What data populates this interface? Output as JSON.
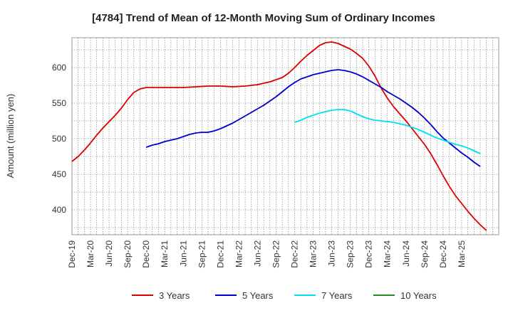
{
  "chart_data": {
    "type": "line",
    "title": "[4784]  Trend of Mean of 12-Month Moving Sum of Ordinary Incomes",
    "xlabel": "",
    "ylabel": "Amount (million yen)",
    "ylim": [
      365,
      642
    ],
    "yticks": [
      400,
      450,
      500,
      550,
      600
    ],
    "x_ticks": [
      "Dec-19",
      "Mar-20",
      "Jun-20",
      "Sep-20",
      "Dec-20",
      "Mar-21",
      "Jun-21",
      "Sep-21",
      "Dec-21",
      "Mar-22",
      "Jun-22",
      "Sep-22",
      "Dec-22",
      "Mar-23",
      "Jun-23",
      "Sep-23",
      "Dec-23",
      "Mar-24",
      "Jun-24",
      "Sep-24",
      "Dec-24",
      "Mar-25"
    ],
    "x_unit": "months from Dec-19",
    "grid": true,
    "legend_position": "bottom",
    "series": [
      {
        "name": "3 Years",
        "color": "#dd0000",
        "points": [
          [
            0,
            468
          ],
          [
            1,
            475
          ],
          [
            2,
            484
          ],
          [
            3,
            494
          ],
          [
            4,
            505
          ],
          [
            5,
            515
          ],
          [
            6,
            524
          ],
          [
            7,
            533
          ],
          [
            8,
            543
          ],
          [
            9,
            555
          ],
          [
            10,
            565
          ],
          [
            11,
            570
          ],
          [
            12,
            572
          ],
          [
            14,
            572
          ],
          [
            16,
            572
          ],
          [
            18,
            572
          ],
          [
            20,
            573
          ],
          [
            22,
            574
          ],
          [
            24,
            574
          ],
          [
            26,
            573
          ],
          [
            28,
            574
          ],
          [
            30,
            576
          ],
          [
            32,
            580
          ],
          [
            34,
            586
          ],
          [
            35,
            592
          ],
          [
            36,
            600
          ],
          [
            37,
            609
          ],
          [
            38,
            617
          ],
          [
            39,
            624
          ],
          [
            40,
            631
          ],
          [
            41,
            635
          ],
          [
            42,
            636
          ],
          [
            43,
            634
          ],
          [
            44,
            630
          ],
          [
            45,
            626
          ],
          [
            46,
            620
          ],
          [
            47,
            613
          ],
          [
            48,
            602
          ],
          [
            49,
            588
          ],
          [
            50,
            571
          ],
          [
            51,
            557
          ],
          [
            52,
            545
          ],
          [
            53,
            535
          ],
          [
            54,
            525
          ],
          [
            55,
            514
          ],
          [
            56,
            503
          ],
          [
            57,
            492
          ],
          [
            58,
            479
          ],
          [
            59,
            464
          ],
          [
            60,
            448
          ],
          [
            61,
            433
          ],
          [
            62,
            420
          ],
          [
            63,
            409
          ],
          [
            64,
            398
          ],
          [
            65,
            388
          ],
          [
            66,
            379
          ],
          [
            67,
            371
          ]
        ]
      },
      {
        "name": "5 Years",
        "color": "#0000cc",
        "points": [
          [
            12,
            488
          ],
          [
            13,
            491
          ],
          [
            14,
            493
          ],
          [
            15,
            496
          ],
          [
            16,
            498
          ],
          [
            17,
            500
          ],
          [
            18,
            503
          ],
          [
            19,
            506
          ],
          [
            20,
            508
          ],
          [
            21,
            509
          ],
          [
            22,
            509
          ],
          [
            23,
            511
          ],
          [
            24,
            514
          ],
          [
            25,
            518
          ],
          [
            26,
            522
          ],
          [
            27,
            527
          ],
          [
            28,
            532
          ],
          [
            29,
            537
          ],
          [
            30,
            542
          ],
          [
            31,
            547
          ],
          [
            32,
            553
          ],
          [
            33,
            559
          ],
          [
            34,
            566
          ],
          [
            35,
            573
          ],
          [
            36,
            579
          ],
          [
            37,
            584
          ],
          [
            38,
            587
          ],
          [
            39,
            590
          ],
          [
            40,
            592
          ],
          [
            41,
            594
          ],
          [
            42,
            596
          ],
          [
            43,
            597
          ],
          [
            44,
            596
          ],
          [
            45,
            594
          ],
          [
            46,
            591
          ],
          [
            47,
            587
          ],
          [
            48,
            582
          ],
          [
            49,
            577
          ],
          [
            50,
            572
          ],
          [
            51,
            566
          ],
          [
            52,
            561
          ],
          [
            53,
            556
          ],
          [
            54,
            550
          ],
          [
            55,
            544
          ],
          [
            56,
            537
          ],
          [
            57,
            529
          ],
          [
            58,
            520
          ],
          [
            59,
            510
          ],
          [
            60,
            501
          ],
          [
            61,
            494
          ],
          [
            62,
            487
          ],
          [
            63,
            480
          ],
          [
            64,
            474
          ],
          [
            65,
            467
          ],
          [
            66,
            461
          ]
        ]
      },
      {
        "name": "7 Years",
        "color": "#00e0f0",
        "points": [
          [
            36,
            523
          ],
          [
            37,
            526
          ],
          [
            38,
            530
          ],
          [
            39,
            533
          ],
          [
            40,
            536
          ],
          [
            41,
            538
          ],
          [
            42,
            540
          ],
          [
            43,
            541
          ],
          [
            44,
            541
          ],
          [
            45,
            539
          ],
          [
            46,
            535
          ],
          [
            47,
            531
          ],
          [
            48,
            528
          ],
          [
            49,
            526
          ],
          [
            50,
            525
          ],
          [
            51,
            524
          ],
          [
            52,
            523
          ],
          [
            53,
            521
          ],
          [
            54,
            519
          ],
          [
            55,
            516
          ],
          [
            56,
            513
          ],
          [
            57,
            509
          ],
          [
            58,
            505
          ],
          [
            59,
            501
          ],
          [
            60,
            498
          ],
          [
            61,
            495
          ],
          [
            62,
            492
          ],
          [
            63,
            490
          ],
          [
            64,
            487
          ],
          [
            65,
            483
          ],
          [
            66,
            479
          ]
        ]
      },
      {
        "name": "10 Years",
        "color": "#228b22",
        "points": []
      }
    ]
  }
}
